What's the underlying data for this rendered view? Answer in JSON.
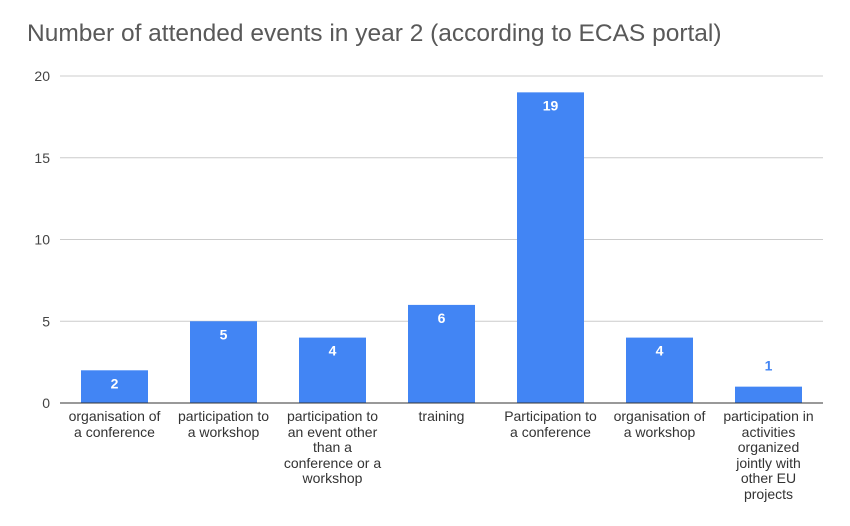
{
  "chart_data": {
    "type": "bar",
    "title": "Number of attended events in year 2 (according to ECAS portal)",
    "xlabel": "",
    "ylabel": "",
    "ylim": [
      0,
      20
    ],
    "yticks": [
      "0",
      "5",
      "10",
      "15",
      "20"
    ],
    "grid": true,
    "categories": [
      "organisation of a conference",
      "participation to a workshop",
      "participation to an event other than a conference or a workshop",
      "training",
      "Participation to a conference",
      "organisation of a workshop",
      "participation in activities organized jointly with other EU projects"
    ],
    "values": [
      2,
      5,
      4,
      6,
      19,
      4,
      1
    ],
    "bar_color": "#4285f4",
    "label_color_inside": "#ffffff",
    "label_color_outside": "#4285f4"
  }
}
